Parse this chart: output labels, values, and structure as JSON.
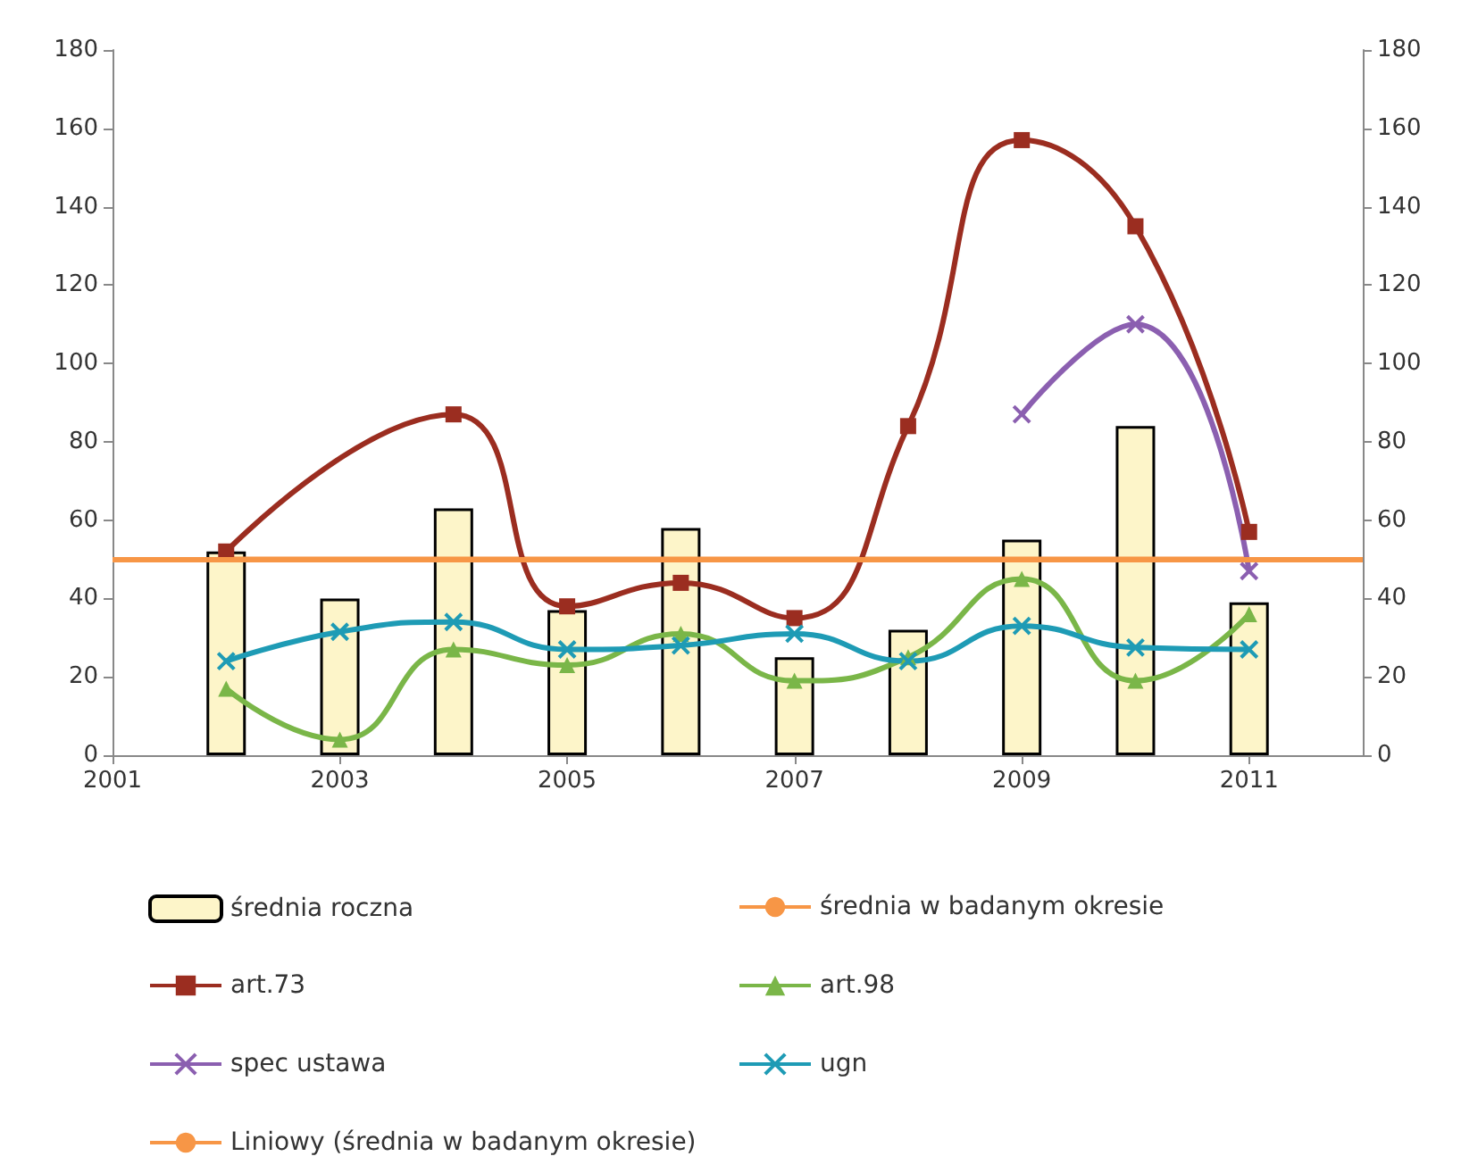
{
  "chart_data": {
    "type": "line",
    "xlim": [
      2001,
      2012
    ],
    "xticks": [
      2001,
      2003,
      2005,
      2007,
      2009,
      2011
    ],
    "ylim": [
      0,
      180
    ],
    "yticks": [
      0,
      20,
      40,
      60,
      80,
      100,
      120,
      140,
      160,
      180
    ],
    "y2lim": [
      0,
      180
    ],
    "y2ticks": [
      0,
      20,
      40,
      60,
      80,
      100,
      120,
      140,
      160,
      180
    ],
    "grid": false,
    "legend": "bottom",
    "series": [
      {
        "name": "średnia roczna",
        "type": "bar",
        "color": "#fdf5c9",
        "x": [
          2002,
          2003,
          2004,
          2005,
          2006,
          2007,
          2008,
          2009,
          2010,
          2011
        ],
        "values": [
          52,
          40,
          63,
          37,
          58,
          25,
          32,
          55,
          84,
          39
        ]
      },
      {
        "name": "średnia w badanym okresie",
        "color": "#f79646",
        "marker": "none",
        "x": [
          2002,
          2011
        ],
        "values": [
          50,
          50
        ]
      },
      {
        "name": "art.73",
        "color": "#9b2d20",
        "marker": "square",
        "x": [
          2002,
          2004,
          2005,
          2006,
          2007,
          2008,
          2009,
          2010,
          2011
        ],
        "values": [
          52,
          87,
          38,
          44,
          35,
          84,
          157,
          135,
          57
        ]
      },
      {
        "name": "art.98",
        "color": "#7ab648",
        "marker": "triangle",
        "x": [
          2002,
          2003,
          2004,
          2005,
          2006,
          2007,
          2008,
          2009,
          2010,
          2011
        ],
        "values": [
          17,
          4,
          27,
          23,
          31,
          19,
          25,
          45,
          19,
          36
        ]
      },
      {
        "name": "spec ustawa",
        "color": "#8b5fb0",
        "marker": "cross",
        "x": [
          2009,
          2010,
          2011
        ],
        "values": [
          87,
          110,
          47
        ]
      },
      {
        "name": "ugn",
        "color": "#1e9bb5",
        "marker": "cross",
        "x": [
          2002,
          2003,
          2004,
          2005,
          2006,
          2007,
          2008,
          2009,
          2010,
          2011
        ],
        "values": [
          24,
          31.5,
          34,
          27,
          28,
          31,
          24,
          33,
          27.5,
          27
        ]
      }
    ],
    "ref_lines": [
      {
        "axis": "y",
        "value": 50,
        "label": "Liniowy (średnia w badanym okresie)",
        "color": "#f79646"
      }
    ]
  }
}
